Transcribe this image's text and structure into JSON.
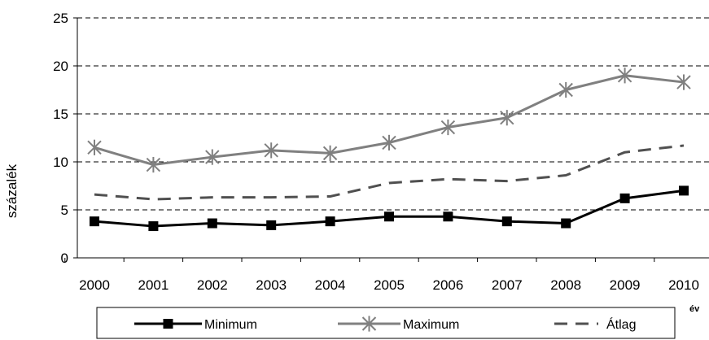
{
  "chart_data": {
    "type": "line",
    "title": "",
    "ylabel": "százalék",
    "xlabel": "év",
    "ylim": [
      0,
      25
    ],
    "yticks": [
      0,
      5,
      10,
      15,
      20,
      25
    ],
    "grid": "horizontal dashed",
    "legend_position": "bottom",
    "categories": [
      "2000",
      "2001",
      "2002",
      "2003",
      "2004",
      "2005",
      "2006",
      "2007",
      "2008",
      "2009",
      "2010"
    ],
    "series": [
      {
        "name": "Minimum",
        "marker": "square",
        "line": "solid",
        "color": "#000000",
        "values": [
          3.8,
          3.3,
          3.6,
          3.4,
          3.8,
          4.3,
          4.3,
          3.8,
          3.6,
          6.2,
          7.0
        ]
      },
      {
        "name": "Maximum",
        "marker": "star",
        "line": "solid",
        "color": "#808080",
        "values": [
          11.5,
          9.7,
          10.5,
          11.2,
          10.9,
          12.0,
          13.6,
          14.6,
          17.5,
          19.0,
          18.3
        ]
      },
      {
        "name": "Átlag",
        "marker": "none",
        "line": "dashed",
        "color": "#505050",
        "values": [
          6.6,
          6.1,
          6.3,
          6.3,
          6.4,
          7.8,
          8.2,
          8.0,
          8.6,
          11.0,
          11.7
        ]
      }
    ]
  }
}
